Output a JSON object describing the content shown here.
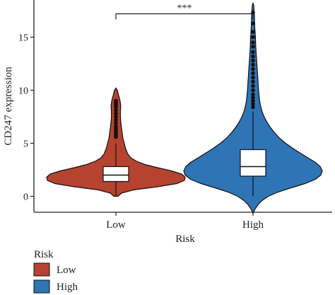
{
  "chart_data": {
    "type": "violin",
    "xlabel": "Risk",
    "ylabel": "CD247 expression",
    "categories": [
      "Low",
      "High"
    ],
    "ylim": [
      -1.5,
      18.5
    ],
    "yticks": [
      0,
      5,
      10,
      15
    ],
    "grid": false,
    "series": [
      {
        "name": "Low",
        "color": "#b5432f",
        "box": {
          "q1": 1.4,
          "median": 2.0,
          "q3": 2.8,
          "whisker_low": 0.0,
          "whisker_high": 5.0
        },
        "range": [
          0.0,
          10.2
        ],
        "density": [
          [
            0.0,
            0.03
          ],
          [
            0.3,
            0.08
          ],
          [
            0.6,
            0.25
          ],
          [
            0.9,
            0.6
          ],
          [
            1.2,
            0.88
          ],
          [
            1.5,
            0.99
          ],
          [
            1.8,
            1.0
          ],
          [
            2.1,
            0.95
          ],
          [
            2.4,
            0.8
          ],
          [
            2.7,
            0.6
          ],
          [
            3.0,
            0.42
          ],
          [
            3.3,
            0.3
          ],
          [
            3.6,
            0.22
          ],
          [
            4.0,
            0.17
          ],
          [
            4.5,
            0.14
          ],
          [
            5.0,
            0.12
          ],
          [
            5.5,
            0.1
          ],
          [
            6.0,
            0.09
          ],
          [
            6.5,
            0.08
          ],
          [
            7.0,
            0.07
          ],
          [
            7.5,
            0.065
          ],
          [
            8.0,
            0.065
          ],
          [
            8.5,
            0.07
          ],
          [
            9.0,
            0.06
          ],
          [
            9.5,
            0.04
          ],
          [
            10.0,
            0.02
          ],
          [
            10.2,
            0.0
          ]
        ],
        "outliers": [
          5.6,
          5.8,
          6.0,
          6.2,
          6.4,
          6.6,
          6.9,
          7.2,
          7.5,
          7.8,
          8.1,
          8.4,
          8.6,
          8.8,
          9.0
        ]
      },
      {
        "name": "High",
        "color": "#2f74b5",
        "box": {
          "q1": 1.9,
          "median": 2.8,
          "q3": 4.4,
          "whisker_low": 0.0,
          "whisker_high": 8.0
        },
        "range": [
          -1.6,
          18.2
        ],
        "density": [
          [
            -1.6,
            0.0
          ],
          [
            -1.2,
            0.03
          ],
          [
            -0.8,
            0.07
          ],
          [
            -0.4,
            0.13
          ],
          [
            0.0,
            0.22
          ],
          [
            0.4,
            0.36
          ],
          [
            0.8,
            0.55
          ],
          [
            1.2,
            0.75
          ],
          [
            1.6,
            0.9
          ],
          [
            2.0,
            0.98
          ],
          [
            2.4,
            1.0
          ],
          [
            2.8,
            0.97
          ],
          [
            3.2,
            0.9
          ],
          [
            3.6,
            0.8
          ],
          [
            4.0,
            0.7
          ],
          [
            4.5,
            0.58
          ],
          [
            5.0,
            0.47
          ],
          [
            5.5,
            0.38
          ],
          [
            6.0,
            0.31
          ],
          [
            6.5,
            0.25
          ],
          [
            7.0,
            0.2
          ],
          [
            7.5,
            0.16
          ],
          [
            8.0,
            0.13
          ],
          [
            8.5,
            0.11
          ],
          [
            9.0,
            0.095
          ],
          [
            10.0,
            0.08
          ],
          [
            11.0,
            0.07
          ],
          [
            12.0,
            0.06
          ],
          [
            13.0,
            0.05
          ],
          [
            14.0,
            0.04
          ],
          [
            15.0,
            0.035
          ],
          [
            16.0,
            0.025
          ],
          [
            17.0,
            0.02
          ],
          [
            18.0,
            0.01
          ],
          [
            18.2,
            0.0
          ]
        ],
        "outliers": [
          8.4,
          8.7,
          9.0,
          9.3,
          9.6,
          10.0,
          10.4,
          10.8,
          11.2,
          11.6,
          12.0,
          12.4,
          12.8,
          13.2,
          13.6,
          14.1,
          14.5,
          15.0,
          15.5,
          16.3,
          17.3
        ]
      }
    ],
    "significance": {
      "label": "***",
      "between": [
        "Low",
        "High"
      ],
      "y": 17.2
    },
    "legend": {
      "title": "Risk",
      "position": "bottom-left",
      "entries": [
        "Low",
        "High"
      ]
    }
  }
}
